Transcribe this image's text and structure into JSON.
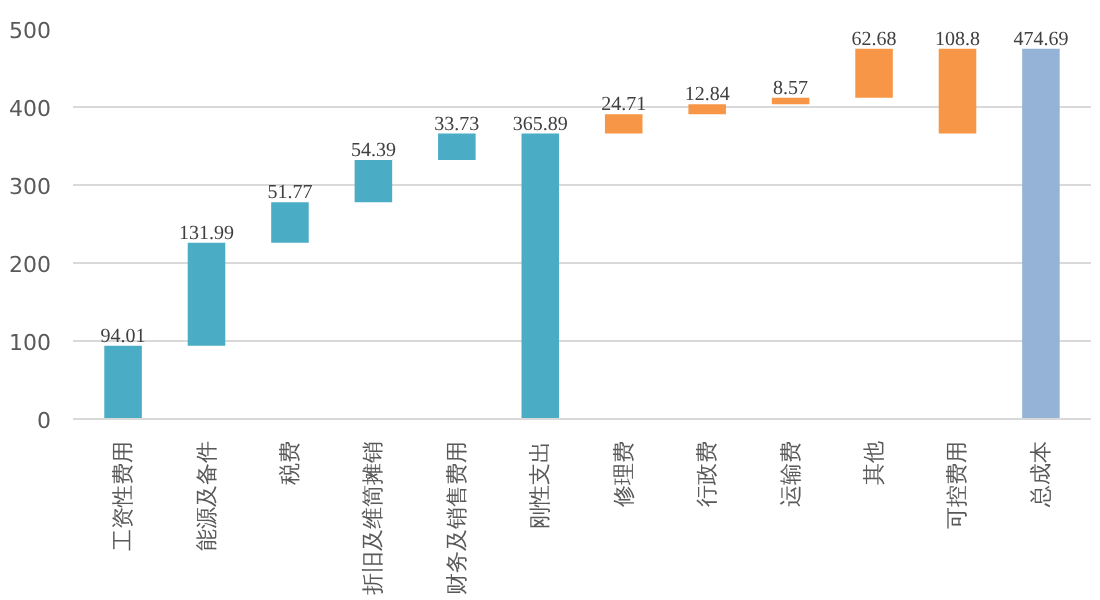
{
  "chart_data": {
    "type": "bar",
    "categories": [
      "工资性费用",
      "能源及备件",
      "税费",
      "折旧及维简摊销",
      "财务及销售费用",
      "刚性支出",
      "修理费",
      "行政费",
      "运输费",
      "其他",
      "可控费用",
      "总成本"
    ],
    "values": [
      94.01,
      131.99,
      51.77,
      54.39,
      33.73,
      365.89,
      24.71,
      12.84,
      8.57,
      62.68,
      108.8,
      474.69
    ],
    "base": [
      0,
      94.01,
      226,
      277.77,
      332.16,
      0,
      365.89,
      390.6,
      403.44,
      412.01,
      365.89,
      0
    ],
    "colors": [
      "#4bacc6",
      "#4bacc6",
      "#4bacc6",
      "#4bacc6",
      "#4bacc6",
      "#4bacc6",
      "#f79646",
      "#f79646",
      "#f79646",
      "#f79646",
      "#f79646",
      "#95b3d7"
    ],
    "ylim": [
      0,
      500
    ],
    "yticks": [
      0,
      100,
      200,
      300,
      400,
      500
    ],
    "grid": "y",
    "data_labels": true
  }
}
